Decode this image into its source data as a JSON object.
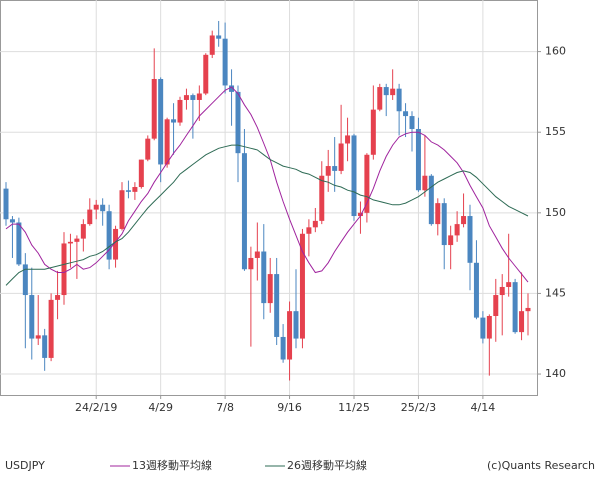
{
  "chart_data": {
    "type": "candlestick",
    "name": "USDJPY",
    "copyright": "(c)Quants Research",
    "categories": [
      null,
      null,
      null,
      null,
      null,
      null,
      null,
      null,
      null,
      null,
      null,
      null,
      null,
      null,
      "24/2/19",
      null,
      null,
      null,
      null,
      null,
      null,
      null,
      null,
      null,
      "4/29",
      null,
      null,
      null,
      null,
      null,
      null,
      null,
      null,
      null,
      "7/8",
      null,
      null,
      null,
      null,
      null,
      null,
      null,
      null,
      null,
      "9/16",
      null,
      null,
      null,
      null,
      null,
      null,
      null,
      null,
      null,
      "11/25",
      null,
      null,
      null,
      null,
      null,
      null,
      null,
      null,
      null,
      "25/2/3",
      null,
      null,
      null,
      null,
      null,
      null,
      null,
      null,
      null,
      "4/14",
      null,
      null,
      null,
      null,
      null,
      null,
      null
    ],
    "open": [
      151.5,
      149.6,
      149.4,
      146.8,
      144.9,
      142.2,
      142.4,
      141.0,
      144.6,
      144.9,
      148.1,
      148.2,
      148.4,
      149.3,
      150.2,
      150.5,
      150.1,
      147.1,
      149.0,
      151.4,
      151.3,
      151.6,
      153.3,
      154.6,
      158.3,
      153.0,
      155.8,
      155.6,
      157.0,
      157.3,
      157.0,
      157.4,
      159.8,
      161.0,
      160.8,
      157.9,
      157.5,
      153.7,
      146.5,
      147.2,
      147.6,
      144.4,
      146.2,
      142.3,
      140.9,
      143.9,
      142.2,
      148.7,
      149.1,
      149.5,
      152.3,
      152.9,
      152.6,
      154.3,
      154.8,
      149.8,
      150.0,
      153.6,
      156.4,
      157.8,
      157.3,
      157.7,
      156.3,
      156.0,
      155.2,
      151.4,
      152.3,
      149.3,
      150.6,
      148.0,
      148.6,
      149.3,
      149.8,
      146.9,
      143.5,
      142.2,
      143.6,
      144.9,
      145.4,
      145.7,
      142.6,
      143.9
    ],
    "high": [
      151.9,
      149.8,
      149.7,
      147.5,
      146.6,
      144.9,
      142.8,
      145.0,
      146.4,
      148.8,
      148.7,
      148.6,
      149.6,
      150.9,
      150.8,
      150.9,
      150.5,
      149.2,
      151.9,
      152.0,
      151.9,
      153.3,
      154.8,
      160.2,
      158.4,
      155.9,
      156.8,
      157.2,
      157.7,
      157.4,
      157.9,
      159.9,
      161.3,
      161.9,
      161.8,
      158.9,
      157.9,
      155.2,
      147.9,
      149.4,
      149.3,
      147.2,
      147.2,
      143.1,
      144.5,
      146.5,
      149.0,
      149.6,
      150.3,
      153.2,
      153.9,
      154.7,
      156.7,
      155.9,
      154.9,
      150.7,
      153.7,
      157.9,
      158.0,
      158.0,
      158.9,
      158.0,
      156.8,
      156.3,
      155.9,
      154.8,
      152.4,
      150.9,
      150.9,
      149.2,
      150.1,
      151.2,
      150.5,
      148.3,
      143.9,
      143.7,
      145.9,
      146.2,
      148.7,
      145.9,
      146.3,
      145.0
    ],
    "low": [
      149.2,
      147.2,
      146.7,
      141.6,
      140.9,
      141.8,
      140.2,
      140.8,
      143.4,
      144.3,
      146.6,
      145.9,
      147.6,
      149.2,
      149.6,
      149.2,
      146.5,
      146.6,
      148.9,
      150.9,
      150.8,
      151.5,
      153.2,
      154.5,
      151.9,
      152.8,
      153.6,
      155.4,
      156.4,
      154.6,
      155.7,
      157.3,
      159.6,
      160.3,
      157.4,
      155.4,
      151.9,
      146.4,
      141.7,
      145.8,
      143.4,
      143.8,
      141.8,
      140.7,
      139.6,
      141.6,
      141.6,
      147.3,
      148.8,
      149.3,
      151.3,
      151.3,
      152.4,
      153.2,
      149.5,
      148.7,
      149.4,
      153.3,
      156.3,
      156.0,
      157.0,
      154.8,
      154.7,
      153.8,
      151.3,
      151.0,
      149.2,
      148.6,
      146.5,
      146.5,
      148.2,
      149.1,
      145.2,
      143.4,
      141.9,
      139.9,
      142.0,
      142.4,
      144.8,
      142.5,
      142.1,
      142.4
    ],
    "close": [
      149.6,
      149.4,
      146.8,
      144.9,
      142.2,
      142.4,
      141.0,
      144.6,
      144.9,
      148.1,
      148.2,
      148.4,
      149.3,
      150.2,
      150.5,
      150.1,
      147.1,
      149.0,
      151.4,
      151.3,
      151.6,
      153.3,
      154.6,
      158.3,
      153.0,
      155.8,
      155.6,
      157.0,
      157.3,
      157.0,
      157.4,
      159.8,
      161.0,
      160.8,
      157.9,
      157.5,
      153.7,
      146.5,
      147.2,
      147.6,
      144.4,
      146.2,
      142.3,
      140.9,
      143.9,
      142.2,
      148.7,
      149.1,
      149.5,
      152.3,
      152.9,
      152.6,
      154.3,
      154.8,
      149.8,
      150.0,
      153.6,
      156.4,
      157.8,
      157.3,
      157.7,
      156.3,
      156.0,
      155.2,
      151.4,
      152.3,
      149.3,
      150.6,
      148.0,
      148.6,
      149.3,
      149.8,
      146.9,
      143.5,
      142.2,
      143.6,
      144.9,
      145.4,
      145.7,
      142.6,
      143.9,
      144.1
    ],
    "up_color": "#e5414e",
    "down_color": "#4b86c0",
    "series": [
      {
        "name": "13週移動平均線",
        "color": "#a0249e",
        "values": [
          149.0,
          149.3,
          149.3,
          148.8,
          148.0,
          147.5,
          146.8,
          146.5,
          146.3,
          146.3,
          146.5,
          146.8,
          146.5,
          146.6,
          146.9,
          147.3,
          147.7,
          148.2,
          148.7,
          149.5,
          150.1,
          150.7,
          151.2,
          151.9,
          152.5,
          153.1,
          153.7,
          154.2,
          154.8,
          155.4,
          156.0,
          156.4,
          156.8,
          157.2,
          157.6,
          157.8,
          157.4,
          156.7,
          156.1,
          155.3,
          154.3,
          153.3,
          151.9,
          150.7,
          149.6,
          148.6,
          147.6,
          146.9,
          146.3,
          146.4,
          146.9,
          147.6,
          148.2,
          148.8,
          149.3,
          149.8,
          150.6,
          151.5,
          152.6,
          153.5,
          154.2,
          154.7,
          154.9,
          155.0,
          155.0,
          154.8,
          154.4,
          154.2,
          153.9,
          153.5,
          153.1,
          152.5,
          151.7,
          151.0,
          150.3,
          149.2,
          148.5,
          147.8,
          147.2,
          146.7,
          146.2,
          145.7
        ]
      },
      {
        "name": "26週移動平均線",
        "color": "#2e6b55",
        "values": [
          145.5,
          145.9,
          146.3,
          146.5,
          146.5,
          146.5,
          146.5,
          146.6,
          146.7,
          146.8,
          146.9,
          147.0,
          147.1,
          147.3,
          147.4,
          147.6,
          147.9,
          148.2,
          148.4,
          148.8,
          149.3,
          149.8,
          150.3,
          150.7,
          151.1,
          151.5,
          151.9,
          152.4,
          152.7,
          153.0,
          153.3,
          153.6,
          153.8,
          154.0,
          154.1,
          154.2,
          154.2,
          154.1,
          154.0,
          153.9,
          153.6,
          153.3,
          153.1,
          152.9,
          152.8,
          152.7,
          152.5,
          152.4,
          152.2,
          152.0,
          151.9,
          151.7,
          151.6,
          151.4,
          151.3,
          151.1,
          151.0,
          150.8,
          150.7,
          150.6,
          150.5,
          150.5,
          150.6,
          150.8,
          151.0,
          151.3,
          151.6,
          151.9,
          152.1,
          152.3,
          152.5,
          152.6,
          152.5,
          152.2,
          151.8,
          151.4,
          151.0,
          150.7,
          150.4,
          150.2,
          150.0,
          149.8
        ]
      }
    ],
    "ylim": [
      138.7,
      163.2
    ],
    "yticks": [
      140,
      145,
      150,
      155,
      160
    ],
    "grid": true
  }
}
